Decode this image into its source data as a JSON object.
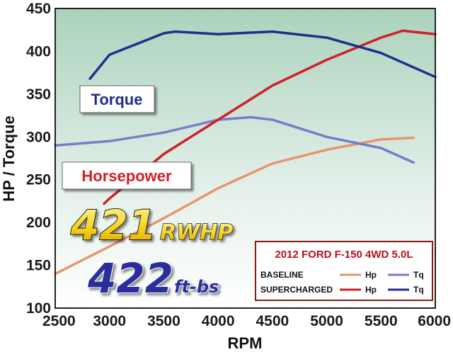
{
  "chart_data": {
    "type": "line",
    "xlabel": "RPM",
    "ylabel": "HP / Torque",
    "xlim": [
      2500,
      6000
    ],
    "ylim": [
      100,
      450
    ],
    "x_ticks": [
      "2500",
      "3000",
      "3500",
      "4000",
      "4500",
      "5000",
      "5500",
      "6000"
    ],
    "y_ticks": [
      "100",
      "150",
      "200",
      "250",
      "300",
      "350",
      "400",
      "450"
    ],
    "grid": false,
    "series": [
      {
        "name": "Hp",
        "group": "BASELINE",
        "color": "#e8956e",
        "x": [
          2500,
          3000,
          3500,
          4000,
          4500,
          5000,
          5500,
          5800
        ],
        "y": [
          140,
          172,
          205,
          240,
          269,
          285,
          297,
          299
        ]
      },
      {
        "name": "Tq",
        "group": "BASELINE",
        "color": "#7b7bc8",
        "x": [
          2500,
          3000,
          3500,
          4000,
          4300,
          4500,
          5000,
          5500,
          5800
        ],
        "y": [
          290,
          295,
          305,
          320,
          323,
          320,
          300,
          287,
          270
        ]
      },
      {
        "name": "Hp",
        "group": "SUPERCHARGED",
        "color": "#d0202a",
        "x": [
          2950,
          3000,
          3500,
          4000,
          4500,
          5000,
          5500,
          5700,
          6000
        ],
        "y": [
          222,
          228,
          280,
          320,
          360,
          390,
          416,
          424,
          420
        ]
      },
      {
        "name": "Tq",
        "group": "SUPERCHARGED",
        "color": "#1f2f8c",
        "x": [
          2820,
          3000,
          3500,
          3600,
          4000,
          4500,
          5000,
          5500,
          6000
        ],
        "y": [
          368,
          396,
          421,
          423,
          420,
          423,
          416,
          398,
          370
        ]
      }
    ],
    "labels": {
      "torque": "Torque",
      "horsepower": "Horsepower"
    },
    "big_stats": {
      "hp_number": "421",
      "hp_unit": "RWHP",
      "tq_number": "422",
      "tq_unit": "ft-bs"
    },
    "legend": {
      "title": "2012 FORD F-150 4WD 5.0L",
      "position": "bottom-right",
      "rows": [
        {
          "label": "BASELINE",
          "hp": "Hp",
          "tq": "Tq"
        },
        {
          "label": "SUPERCHARGED",
          "hp": "Hp",
          "tq": "Tq"
        }
      ]
    }
  }
}
